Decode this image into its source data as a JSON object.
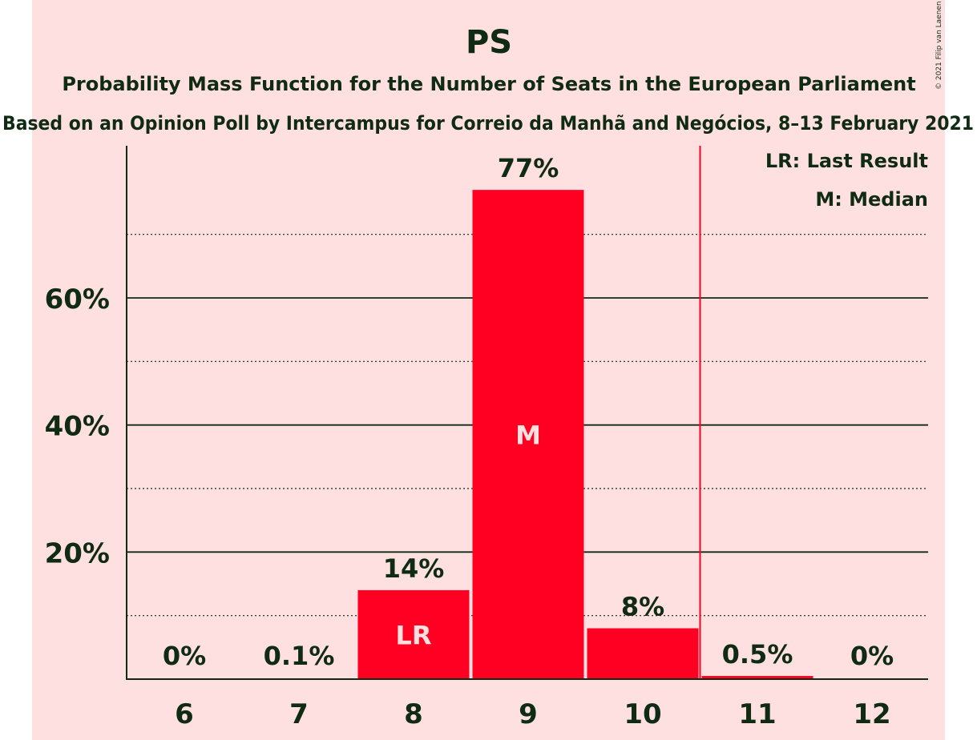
{
  "copyright": "© 2021 Filip van Laenen",
  "chart_data": {
    "type": "bar",
    "title": "PS",
    "subtitle": "Probability Mass Function for the Number of Seats in the European Parliament",
    "subtitle2": "Based on an Opinion Poll by Intercampus for Correio da Manhã and Negócios, 8–13 February 2021",
    "categories": [
      "6",
      "7",
      "8",
      "9",
      "10",
      "11",
      "12"
    ],
    "values": [
      0,
      0.1,
      14,
      77,
      8,
      0.5,
      0
    ],
    "value_labels": [
      "0%",
      "0.1%",
      "14%",
      "77%",
      "8%",
      "0.5%",
      "0%"
    ],
    "bar_markers": [
      "",
      "",
      "LR",
      "M",
      "",
      "",
      ""
    ],
    "ylim": [
      0,
      84
    ],
    "yticks": [
      20,
      40,
      60
    ],
    "ytick_labels": [
      "20%",
      "40%",
      "60%"
    ],
    "minor_gridlines": [
      10,
      30,
      50,
      70
    ],
    "last_result_line_after": "10",
    "legend": [
      "LR: Last Result",
      "M: Median"
    ],
    "legend_position": "top-right",
    "bar_color": "#ff0022",
    "line_color": "#ff0022",
    "text_color": "#0f2b14",
    "background_color": "#ffe0e0"
  }
}
